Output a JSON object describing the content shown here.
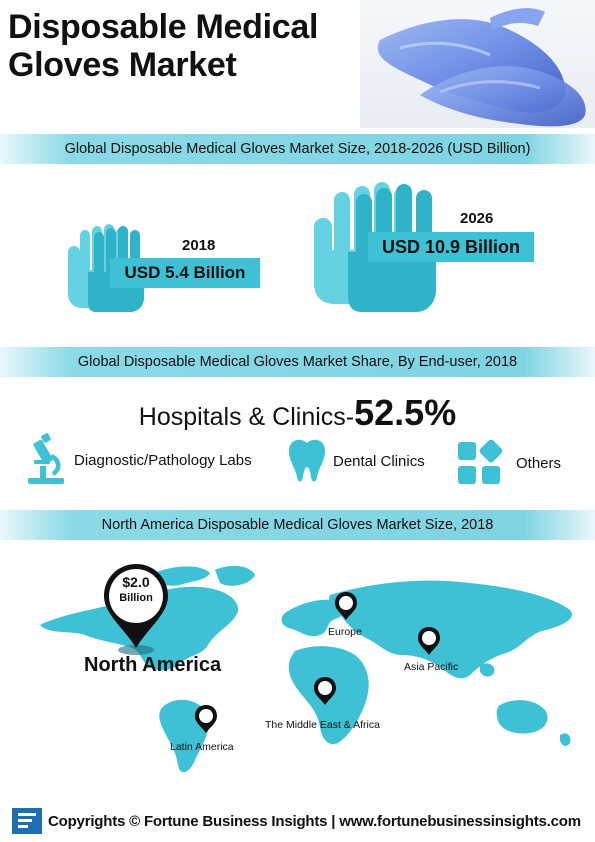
{
  "title": {
    "line1": "Disposable Medical",
    "line2": "Gloves Market"
  },
  "colors": {
    "accent": "#3ec0d5",
    "accent_dark": "#1f9fb4",
    "band": "#7fd4e2",
    "text": "#111111"
  },
  "section1": {
    "heading": "Global Disposable Medical Gloves Market Size, 2018-2026 (USD Billion)",
    "items": [
      {
        "year": "2018",
        "value": "USD 5.4 Billion"
      },
      {
        "year": "2026",
        "value": "USD 10.9 Billion"
      }
    ]
  },
  "section2": {
    "heading": "Global Disposable Medical Gloves Market Share, By End-user, 2018",
    "lead_label": "Hospitals & Clinics-",
    "lead_value": "52.5%",
    "categories": [
      {
        "label": "Diagnostic/Pathology Labs",
        "icon": "microscope-icon"
      },
      {
        "label": "Dental Clinics",
        "icon": "tooth-icon"
      },
      {
        "label": "Others",
        "icon": "grid-icon"
      }
    ]
  },
  "section3": {
    "heading": "North America Disposable Medical Gloves Market Size, 2018",
    "pin_value": "$2.0",
    "pin_unit": "Billion",
    "highlight_region": "North America",
    "regions": [
      "Europe",
      "Asia Pacific",
      "The Middle East & Africa",
      "Latin America"
    ]
  },
  "footer": {
    "text": "Copyrights © Fortune Business Insights | www.fortunebusinessinsights.com",
    "logo": "fbi-logo-icon"
  }
}
